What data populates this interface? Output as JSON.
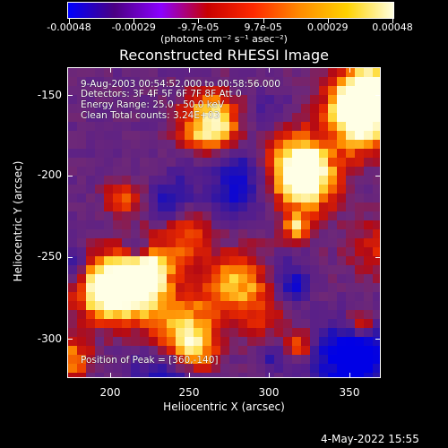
{
  "colorbar": {
    "labels": [
      "-0.00048",
      "-0.00029",
      "-9.7e-05",
      "9.7e-05",
      "0.00029",
      "0.00048"
    ],
    "units": "(photons cm⁻² s⁻¹ asec⁻²)",
    "gradient_colors": [
      "#0000ff",
      "#4b0082",
      "#8b00ff",
      "#c80000",
      "#ff2a00",
      "#ff8c00",
      "#ffd200",
      "#ffffe0"
    ]
  },
  "plot": {
    "title": "Reconstructed RHESSI Image",
    "annotations": {
      "time_range": "9-Aug-2003 00:54:52.000 to 00:58:56.000",
      "detectors": "Detectors: 3F 4F 5F 6F 7F 8F  Att 0",
      "energy": "Energy Range: 25.0 - 50.0 keV",
      "clean": "Clean    Total counts: 3.24E+03",
      "peak": "Position of Peak = [360,-140]"
    },
    "y_ticks": [
      "-150",
      "-200",
      "-250",
      "-300"
    ],
    "x_ticks": [
      "200",
      "250",
      "300",
      "350"
    ],
    "y_label": "Heliocentric Y (arcsec)",
    "x_label": "Heliocentric X (arcsec)"
  },
  "footer": {
    "timestamp": "4-May-2022 15:55"
  },
  "chart_data": {
    "type": "heatmap",
    "title": "Reconstructed RHESSI Image",
    "xlabel": "Heliocentric X (arcsec)",
    "ylabel": "Heliocentric Y (arcsec)",
    "xlim": [
      173,
      368
    ],
    "ylim": [
      -325,
      -132
    ],
    "value_range": [
      -0.00048,
      0.00048
    ],
    "peak": [
      360,
      -140
    ],
    "grid": false
  }
}
